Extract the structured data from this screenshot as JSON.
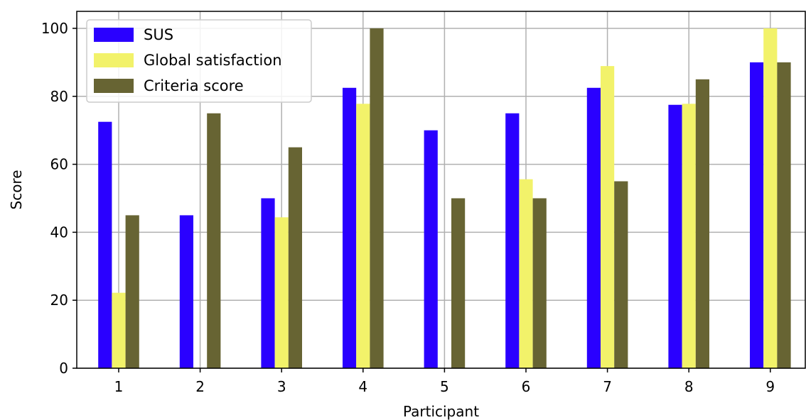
{
  "chart_data": {
    "type": "bar",
    "title": "",
    "xlabel": "Participant",
    "ylabel": "Score",
    "categories": [
      "1",
      "2",
      "3",
      "4",
      "5",
      "6",
      "7",
      "8",
      "9"
    ],
    "ylim": [
      0,
      105
    ],
    "yticks": [
      0,
      20,
      40,
      60,
      80,
      100
    ],
    "grid": true,
    "legend_position": "top-left",
    "series": [
      {
        "name": "SUS",
        "color": "#2a00ff",
        "values": [
          72.5,
          45,
          50,
          82.5,
          70,
          75,
          82.5,
          77.5,
          90
        ]
      },
      {
        "name": "Global satisfaction",
        "color": "#f2f26a",
        "values": [
          22.2,
          0,
          44.4,
          77.8,
          0,
          55.6,
          88.9,
          77.8,
          100
        ]
      },
      {
        "name": "Criteria score",
        "color": "#676433",
        "values": [
          45,
          75,
          65,
          100,
          50,
          50,
          55,
          85,
          90
        ]
      }
    ]
  }
}
